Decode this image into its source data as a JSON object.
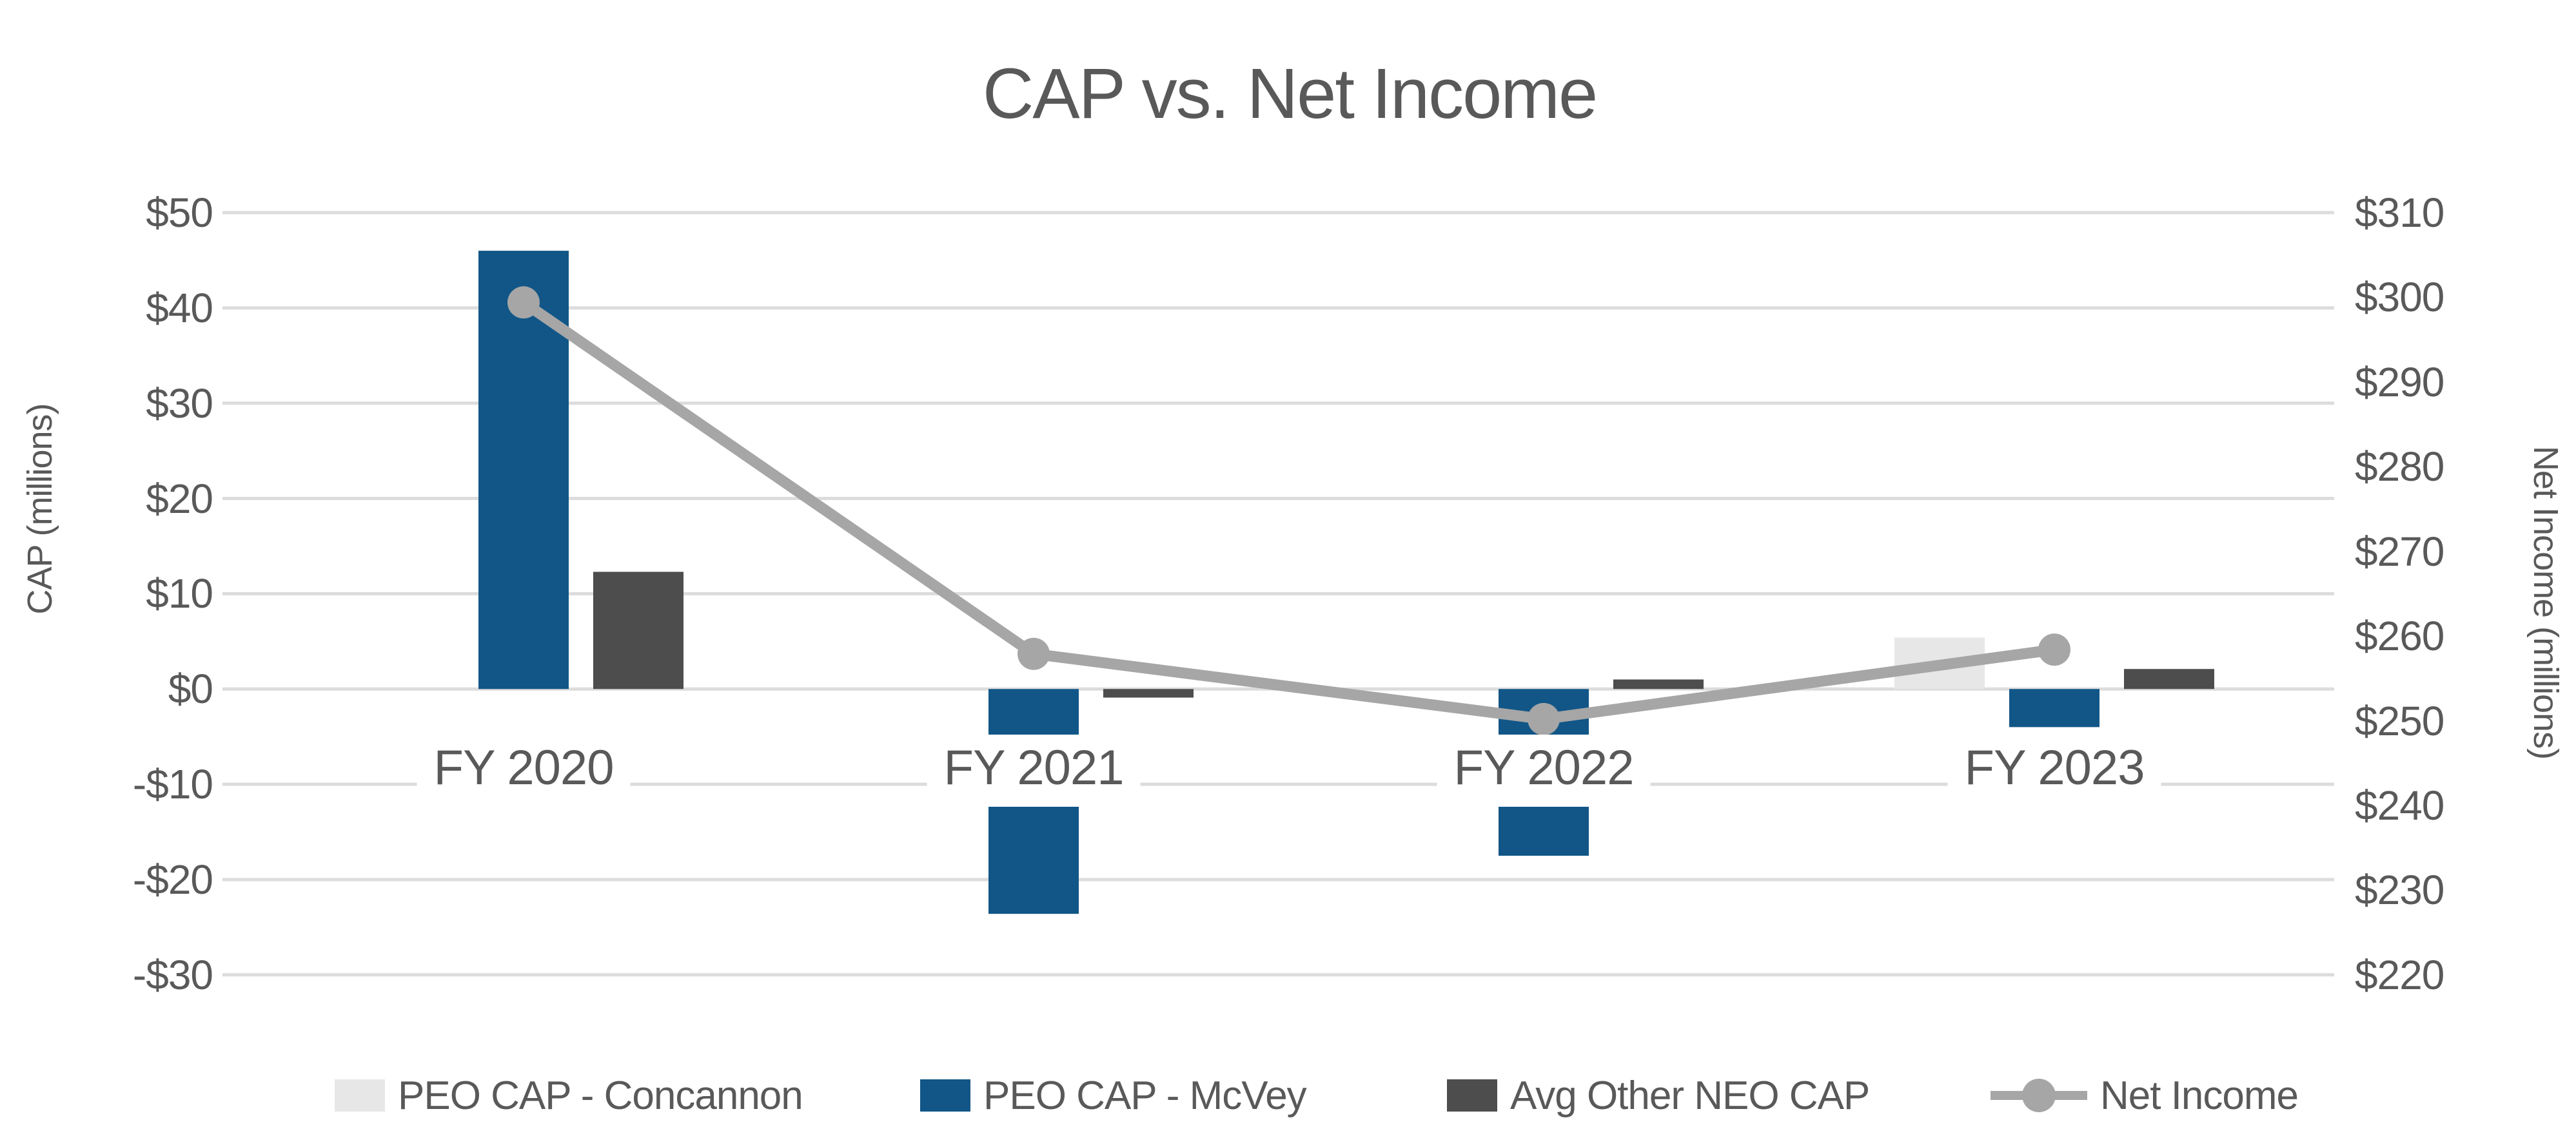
{
  "title": "CAP vs. Net Income",
  "colors": {
    "peo_cap_concannon": "#E7E7E7",
    "peo_cap_mcvey": "#115687",
    "avg_other_neo_cap": "#4D4D4D",
    "net_income_line": "#A6A6A6",
    "gridline": "#DCDCDC",
    "text": "#595959",
    "background": "#FFFFFF"
  },
  "chart_data": {
    "type": "combo-bar-line",
    "title": "CAP vs. Net Income",
    "categories": [
      "FY 2020",
      "FY 2021",
      "FY 2022",
      "FY 2023"
    ],
    "series": [
      {
        "name": "PEO CAP - Concannon",
        "type": "bar",
        "axis": "left",
        "color": "#E7E7E7",
        "values": [
          null,
          null,
          null,
          5.4
        ]
      },
      {
        "name": "PEO CAP - McVey",
        "type": "bar",
        "axis": "left",
        "color": "#115687",
        "values": [
          46,
          -23.6,
          -17.5,
          -4.0
        ]
      },
      {
        "name": "Avg Other NEO CAP",
        "type": "bar",
        "axis": "left",
        "color": "#4D4D4D",
        "values": [
          12.3,
          -0.9,
          1.0,
          2.1
        ]
      },
      {
        "name": "Net Income",
        "type": "line",
        "axis": "right",
        "color": "#A6A6A6",
        "values": [
          299.4,
          257.9,
          250.2,
          258.4
        ]
      }
    ],
    "left_axis": {
      "label": "CAP (millions)",
      "ticks": [
        "$50",
        "$40",
        "$30",
        "$20",
        "$10",
        "$0",
        "-$10",
        "-$20",
        "-$30"
      ],
      "range": [
        50,
        -30
      ],
      "step": 10
    },
    "right_axis": {
      "label": "Net Income (millions)",
      "ticks": [
        "$310",
        "$300",
        "$290",
        "$280",
        "$270",
        "$260",
        "$250",
        "$240",
        "$230",
        "$220"
      ],
      "range": [
        310,
        220
      ],
      "step": 10
    },
    "grid": true,
    "legend_position": "bottom"
  },
  "legend": {
    "items": [
      {
        "label": "PEO CAP - Concannon",
        "swatch": "bar",
        "color": "#E7E7E7"
      },
      {
        "label": "PEO CAP - McVey",
        "swatch": "bar",
        "color": "#115687"
      },
      {
        "label": "Avg Other NEO CAP",
        "swatch": "bar",
        "color": "#4D4D4D"
      },
      {
        "label": "Net Income",
        "swatch": "line-marker",
        "color": "#A6A6A6"
      }
    ]
  }
}
